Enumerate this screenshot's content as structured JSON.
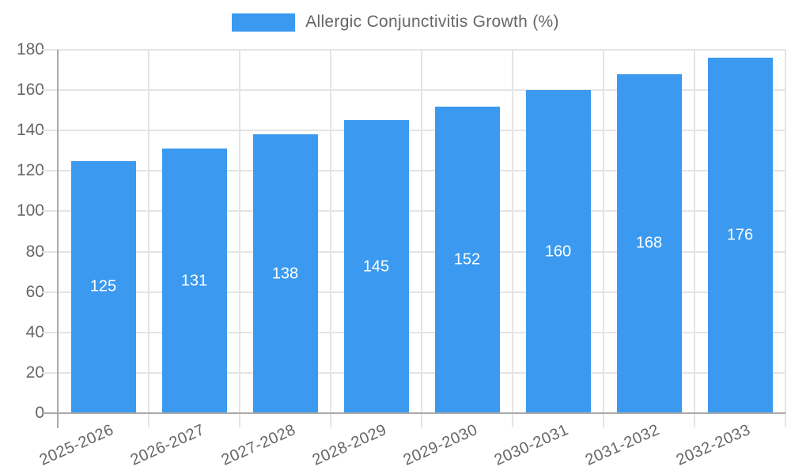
{
  "legend": {
    "label": "Allergic Conjunctivitis Growth (%)"
  },
  "chart_data": {
    "type": "bar",
    "title": "",
    "xlabel": "",
    "ylabel": "",
    "categories": [
      "2025-2026",
      "2026-2027",
      "2027-2028",
      "2028-2029",
      "2029-2030",
      "2030-2031",
      "2031-2032",
      "2032-2033"
    ],
    "series": [
      {
        "name": "Allergic Conjunctivitis Growth (%)",
        "values": [
          125,
          131,
          138,
          145,
          152,
          160,
          168,
          176
        ]
      }
    ],
    "ylim": [
      0,
      180
    ],
    "yticks": [
      0,
      20,
      40,
      60,
      80,
      100,
      120,
      140,
      160,
      180
    ],
    "grid": true,
    "legend_position": "top",
    "value_labels": "inside-center",
    "x_label_rotation_deg": -24
  },
  "colors": {
    "bar": "#3b9af0",
    "axis": "#a9a9a9",
    "gridline": "#e4e4e4",
    "text": "#666666",
    "value_label": "#ffffff",
    "background": "#ffffff"
  }
}
